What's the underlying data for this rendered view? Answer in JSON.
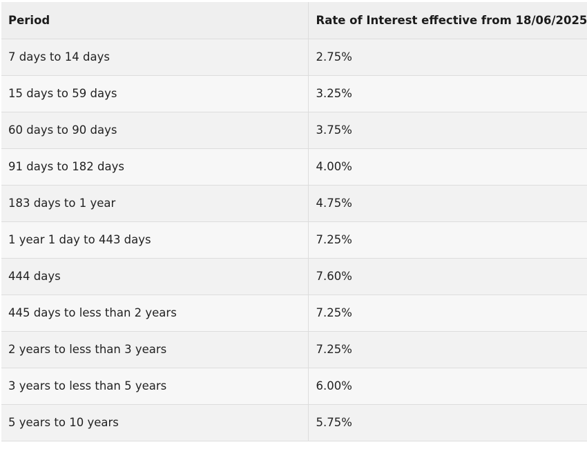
{
  "table": {
    "headers": {
      "period": "Period",
      "rate": "Rate of Interest effective from 18/06/2025"
    },
    "rows": [
      {
        "period": "7 days to 14 days",
        "rate": "2.75%"
      },
      {
        "period": "15 days to 59 days",
        "rate": "3.25%"
      },
      {
        "period": "60 days to 90 days",
        "rate": "3.75%"
      },
      {
        "period": "91 days to 182 days",
        "rate": "4.00%"
      },
      {
        "period": "183 days to 1 year",
        "rate": "4.75%"
      },
      {
        "period": "1 year 1 day to 443 days",
        "rate": "7.25%"
      },
      {
        "period": "444 days",
        "rate": "7.60%"
      },
      {
        "period": "445 days to less than 2 years",
        "rate": "7.25%"
      },
      {
        "period": "2 years to less than 3 years",
        "rate": "7.25%"
      },
      {
        "period": "3 years to less than 5 years",
        "rate": "6.00%"
      },
      {
        "period": "5 years to 10 years",
        "rate": "5.75%"
      }
    ]
  }
}
